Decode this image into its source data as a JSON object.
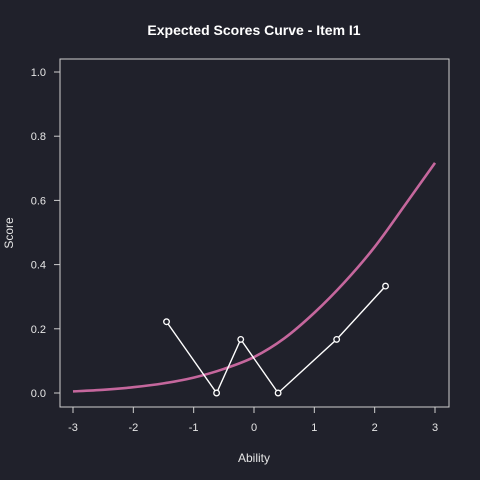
{
  "colors": {
    "background": "#20212b",
    "curve": "#c5679d",
    "observed": "#ffffff",
    "axis": "#cfcfcf",
    "text": "#e6e6e6"
  },
  "chart_data": {
    "type": "line",
    "title": "Expected Scores Curve - Item  I1",
    "xlabel": "Ability",
    "ylabel": "Score",
    "xlim": [
      -3,
      3
    ],
    "ylim": [
      0,
      1
    ],
    "x_ticks": [
      -3,
      -2,
      -1,
      0,
      1,
      2,
      3
    ],
    "y_ticks": [
      0.0,
      0.2,
      0.4,
      0.6,
      0.8,
      1.0
    ],
    "x_tick_labels": [
      "-3",
      "-2",
      "-1",
      "0",
      "1",
      "2",
      "3"
    ],
    "y_tick_labels": [
      "0.0",
      "0.2",
      "0.4",
      "0.6",
      "0.8",
      "1.0"
    ],
    "grid": false,
    "series": [
      {
        "kind": "curve",
        "x": [
          -3.0,
          -2.5,
          -2.0,
          -1.5,
          -1.0,
          -0.5,
          0.0,
          0.5,
          1.0,
          1.5,
          2.0,
          2.5,
          3.0
        ],
        "y": [
          0.005,
          0.01,
          0.018,
          0.03,
          0.048,
          0.075,
          0.112,
          0.17,
          0.25,
          0.345,
          0.455,
          0.585,
          0.717
        ]
      },
      {
        "kind": "observed",
        "x": [
          -1.45,
          -0.62,
          -0.22,
          0.4,
          1.37,
          2.18
        ],
        "y": [
          0.222,
          0.0,
          0.167,
          0.0,
          0.167,
          0.333
        ]
      }
    ]
  }
}
